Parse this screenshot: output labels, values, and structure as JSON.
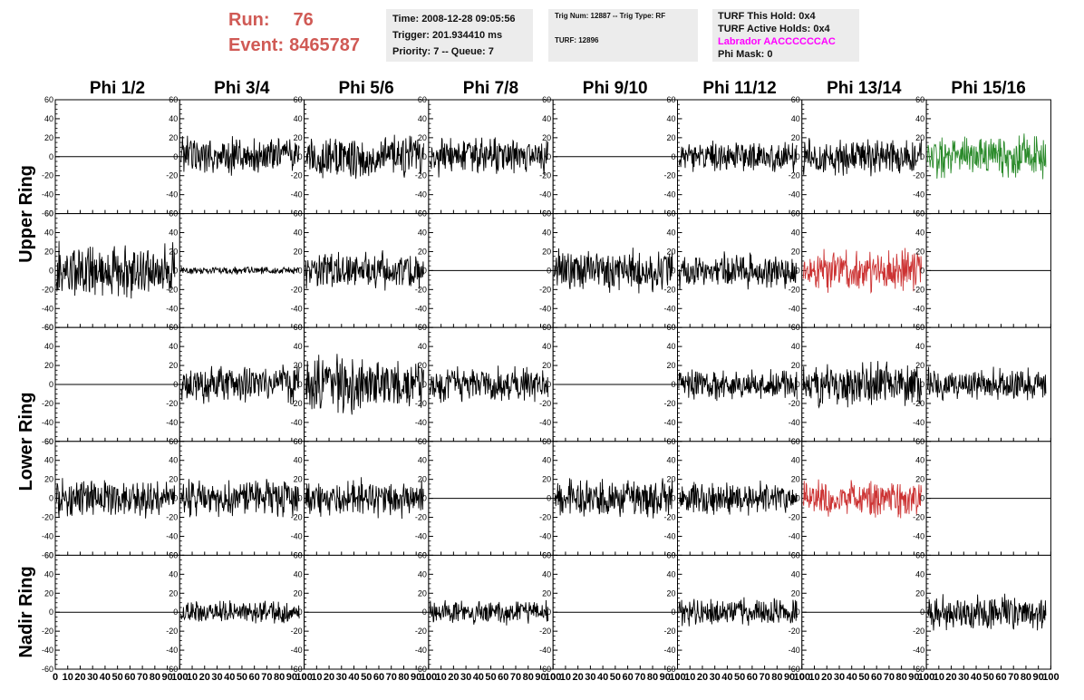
{
  "header": {
    "run_label": "Run:",
    "run_value": "76",
    "event_label": "Event:",
    "event_value": "8465787",
    "time_line": "Time: 2008-12-28 09:05:56",
    "trigger_line": "Trigger: 201.934410 ms",
    "priority_line": "Priority: 7 -- Queue: 7",
    "trig_num_line": "Trig Num: 12887 -- Trig Type: RF",
    "turf_line": "TURF: 12896",
    "turf_this_hold": "TURF This Hold: 0x4",
    "turf_active_holds": "TURF Active Holds: 0x4",
    "labrador": "Labrador AACCCCCCAC",
    "phi_mask": "Phi Mask: 0",
    "run_color": "#d05a55",
    "labrador_color": "#ff00ff"
  },
  "columns": [
    "Phi 1/2",
    "Phi 3/4",
    "Phi 5/6",
    "Phi 7/8",
    "Phi 9/10",
    "Phi 11/12",
    "Phi 13/14",
    "Phi 15/16"
  ],
  "rings": [
    {
      "label": "Upper Ring",
      "rows": [
        0,
        1
      ]
    },
    {
      "label": "Lower Ring",
      "rows": [
        2,
        3
      ]
    },
    {
      "label": "Nadir Ring",
      "rows": [
        4
      ]
    }
  ],
  "chart_data": {
    "type": "line",
    "xlim": [
      0,
      100
    ],
    "ylim": [
      -60,
      60
    ],
    "y_ticks": [
      "60",
      "40",
      "20",
      "0",
      "-20",
      "-40",
      "-60"
    ],
    "x_tick_labels": [
      "0",
      "10",
      "20",
      "30",
      "40",
      "50",
      "60",
      "70",
      "80",
      "90",
      "100"
    ],
    "colors": {
      "normal": "#000000",
      "triggered_green": "#2a8a2a",
      "triggered_red": "#cc3333"
    },
    "panels": [
      [
        {
          "row": 0,
          "col": 0,
          "amplitude": 0,
          "color": "normal"
        },
        {
          "row": 0,
          "col": 1,
          "amplitude": 16,
          "color": "normal"
        },
        {
          "row": 0,
          "col": 2,
          "amplitude": 18,
          "color": "normal"
        },
        {
          "row": 0,
          "col": 3,
          "amplitude": 15,
          "color": "normal"
        },
        {
          "row": 0,
          "col": 4,
          "amplitude": 0,
          "color": "normal"
        },
        {
          "row": 0,
          "col": 5,
          "amplitude": 12,
          "color": "normal"
        },
        {
          "row": 0,
          "col": 6,
          "amplitude": 15,
          "color": "normal"
        },
        {
          "row": 0,
          "col": 7,
          "amplitude": 17,
          "color": "triggered_green"
        }
      ],
      [
        {
          "row": 1,
          "col": 0,
          "amplitude": 22,
          "color": "normal"
        },
        {
          "row": 1,
          "col": 1,
          "amplitude": 3,
          "color": "normal"
        },
        {
          "row": 1,
          "col": 2,
          "amplitude": 15,
          "color": "normal"
        },
        {
          "row": 1,
          "col": 3,
          "amplitude": 0,
          "color": "normal"
        },
        {
          "row": 1,
          "col": 4,
          "amplitude": 17,
          "color": "normal"
        },
        {
          "row": 1,
          "col": 5,
          "amplitude": 14,
          "color": "normal"
        },
        {
          "row": 1,
          "col": 6,
          "amplitude": 17,
          "color": "triggered_red"
        },
        {
          "row": 1,
          "col": 7,
          "amplitude": 0,
          "color": "normal"
        }
      ],
      [
        {
          "row": 2,
          "col": 0,
          "amplitude": 0,
          "color": "normal"
        },
        {
          "row": 2,
          "col": 1,
          "amplitude": 15,
          "color": "normal"
        },
        {
          "row": 2,
          "col": 2,
          "amplitude": 22,
          "color": "normal"
        },
        {
          "row": 2,
          "col": 3,
          "amplitude": 14,
          "color": "normal"
        },
        {
          "row": 2,
          "col": 4,
          "amplitude": 0,
          "color": "normal"
        },
        {
          "row": 2,
          "col": 5,
          "amplitude": 13,
          "color": "normal"
        },
        {
          "row": 2,
          "col": 6,
          "amplitude": 18,
          "color": "normal"
        },
        {
          "row": 2,
          "col": 7,
          "amplitude": 13,
          "color": "normal"
        }
      ],
      [
        {
          "row": 3,
          "col": 0,
          "amplitude": 15,
          "color": "normal"
        },
        {
          "row": 3,
          "col": 1,
          "amplitude": 15,
          "color": "normal"
        },
        {
          "row": 3,
          "col": 2,
          "amplitude": 15,
          "color": "normal"
        },
        {
          "row": 3,
          "col": 3,
          "amplitude": 0,
          "color": "normal"
        },
        {
          "row": 3,
          "col": 4,
          "amplitude": 16,
          "color": "normal"
        },
        {
          "row": 3,
          "col": 5,
          "amplitude": 13,
          "color": "normal"
        },
        {
          "row": 3,
          "col": 6,
          "amplitude": 15,
          "color": "triggered_red"
        },
        {
          "row": 3,
          "col": 7,
          "amplitude": 0,
          "color": "normal"
        }
      ],
      [
        {
          "row": 4,
          "col": 0,
          "amplitude": 0,
          "color": "normal"
        },
        {
          "row": 4,
          "col": 1,
          "amplitude": 9,
          "color": "normal"
        },
        {
          "row": 4,
          "col": 2,
          "amplitude": 0,
          "color": "normal"
        },
        {
          "row": 4,
          "col": 3,
          "amplitude": 10,
          "color": "normal"
        },
        {
          "row": 4,
          "col": 4,
          "amplitude": 0,
          "color": "normal"
        },
        {
          "row": 4,
          "col": 5,
          "amplitude": 11,
          "color": "normal"
        },
        {
          "row": 4,
          "col": 6,
          "amplitude": 0,
          "color": "normal"
        },
        {
          "row": 4,
          "col": 7,
          "amplitude": 15,
          "color": "normal"
        }
      ]
    ]
  }
}
